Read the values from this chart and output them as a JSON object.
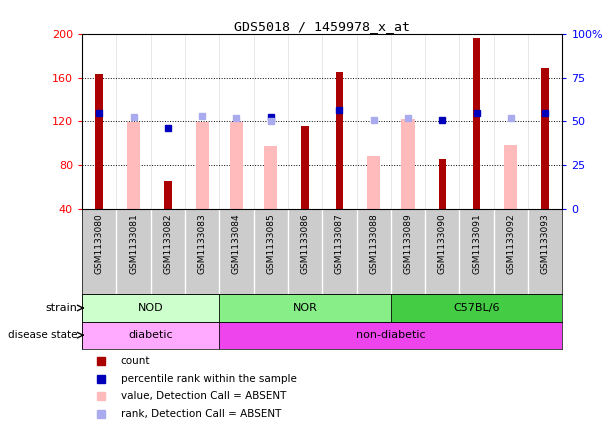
{
  "title": "GDS5018 / 1459978_x_at",
  "samples": [
    "GSM1133080",
    "GSM1133081",
    "GSM1133082",
    "GSM1133083",
    "GSM1133084",
    "GSM1133085",
    "GSM1133086",
    "GSM1133087",
    "GSM1133088",
    "GSM1133089",
    "GSM1133090",
    "GSM1133091",
    "GSM1133092",
    "GSM1133093"
  ],
  "count_values": [
    163,
    null,
    65,
    null,
    null,
    null,
    116,
    165,
    null,
    null,
    86,
    196,
    null,
    169
  ],
  "pink_values": [
    null,
    119,
    null,
    119,
    119,
    97,
    null,
    null,
    88,
    122,
    null,
    null,
    98,
    null
  ],
  "blue_square_values": [
    128,
    null,
    114,
    null,
    null,
    124,
    null,
    130,
    null,
    null,
    121,
    128,
    null,
    128
  ],
  "lightblue_square_values": [
    null,
    124,
    null,
    125,
    123,
    120,
    null,
    null,
    121,
    123,
    null,
    null,
    123,
    null
  ],
  "ylim_left": [
    40,
    200
  ],
  "ylim_right": [
    0,
    100
  ],
  "yticks_left": [
    40,
    80,
    120,
    160,
    200
  ],
  "yticks_right": [
    0,
    25,
    50,
    75,
    100
  ],
  "ytick_labels_right": [
    "0",
    "25",
    "50",
    "75",
    "100%"
  ],
  "strain_groups": [
    {
      "label": "NOD",
      "start": 0,
      "end": 3
    },
    {
      "label": "NOR",
      "start": 4,
      "end": 8
    },
    {
      "label": "C57BL/6",
      "start": 9,
      "end": 13
    }
  ],
  "disease_groups": [
    {
      "label": "diabetic",
      "start": 0,
      "end": 3
    },
    {
      "label": "non-diabetic",
      "start": 4,
      "end": 13
    }
  ],
  "count_color": "#aa0000",
  "pink_color": "#ffbbbb",
  "blue_color": "#0000bb",
  "lightblue_color": "#aaaaee",
  "background_color": "#ffffff",
  "strain_colors": [
    "#ccffcc",
    "#88ee88",
    "#44cc44"
  ],
  "disease_colors": [
    "#ffaaff",
    "#ee44ee"
  ],
  "sample_bg": "#cccccc",
  "grid_dotted_color": "#000000",
  "count_bar_width": 0.22,
  "pink_bar_width": 0.38
}
